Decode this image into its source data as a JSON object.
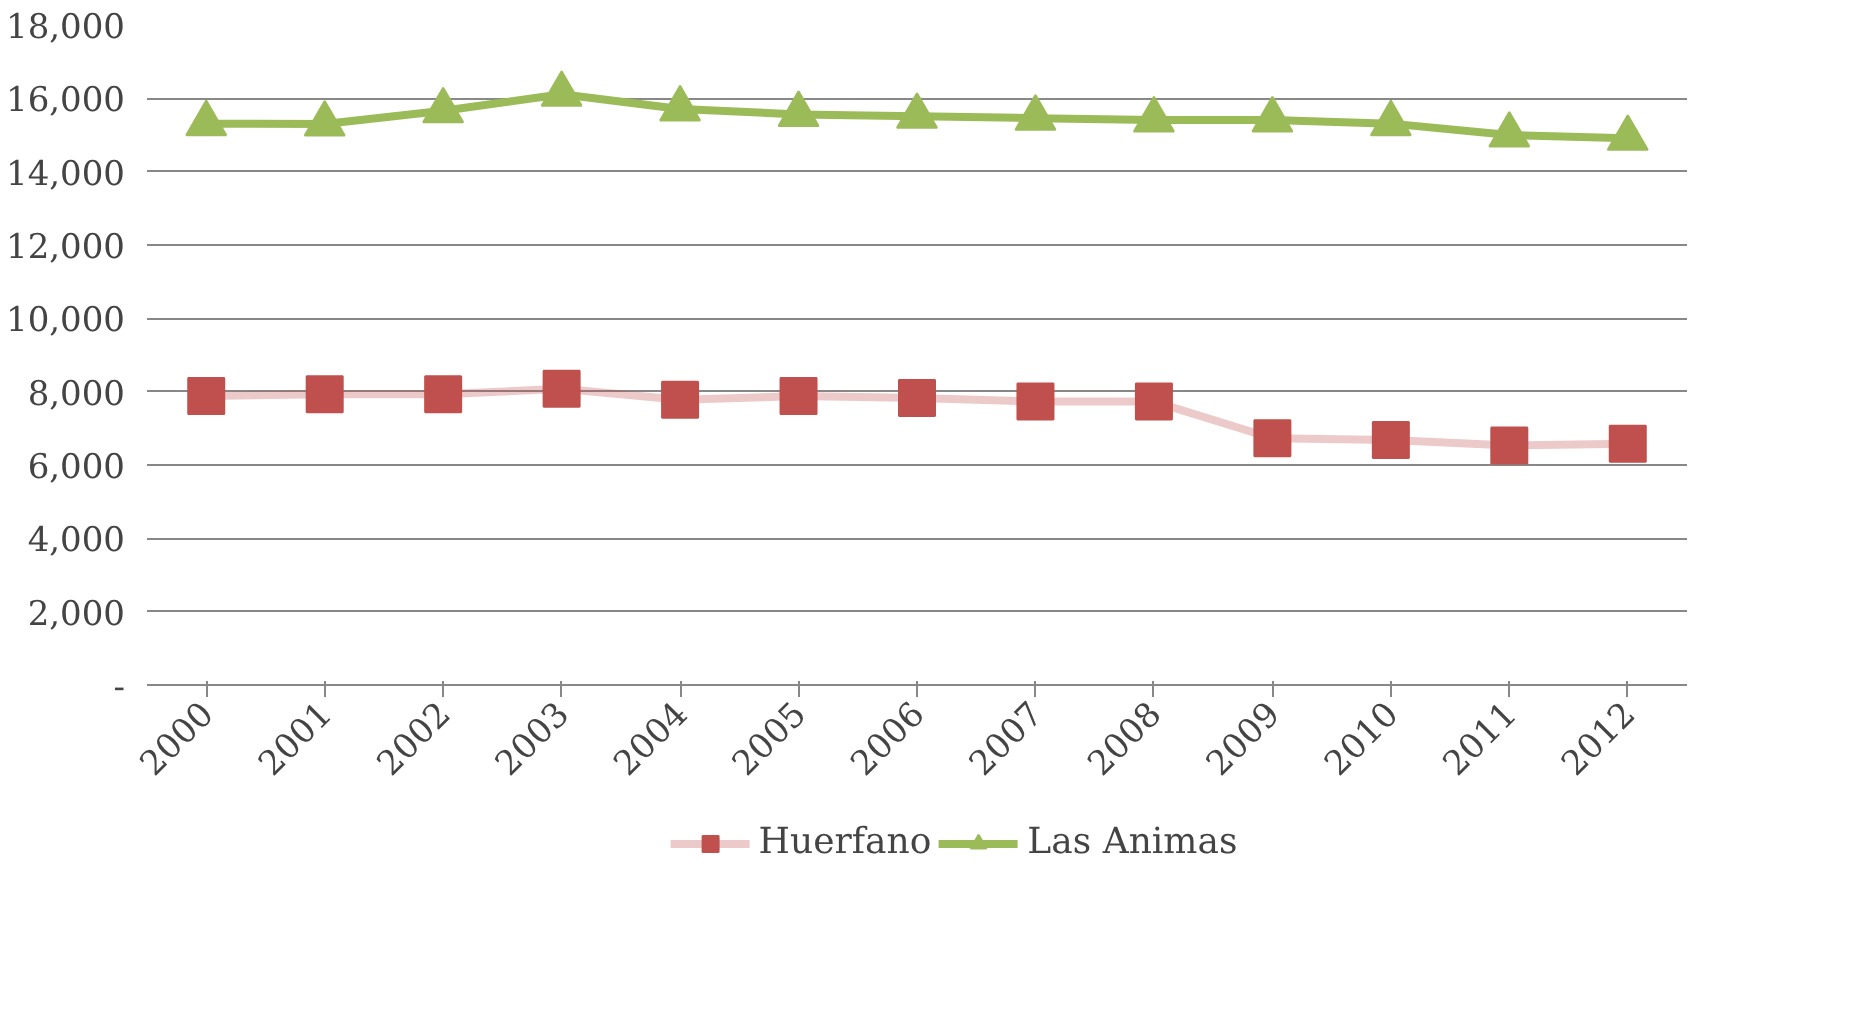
{
  "chart_data": {
    "type": "line",
    "categories": [
      "2000",
      "2001",
      "2002",
      "2003",
      "2004",
      "2005",
      "2006",
      "2007",
      "2008",
      "2009",
      "2010",
      "2011",
      "2012"
    ],
    "series": [
      {
        "name": "Huerfano",
        "color": "#c0504d",
        "marker": "square",
        "values": [
          7880,
          7930,
          7930,
          8080,
          7780,
          7880,
          7830,
          7730,
          7730,
          6730,
          6680,
          6530,
          6580
        ]
      },
      {
        "name": "Las Animas",
        "color": "#9bbb59",
        "marker": "triangle",
        "values": [
          15310,
          15300,
          15660,
          16110,
          15710,
          15560,
          15510,
          15460,
          15410,
          15410,
          15310,
          15000,
          14910
        ]
      }
    ],
    "ylim": [
      0,
      18000
    ],
    "yticks": [
      {
        "value": 0,
        "label": "-"
      },
      {
        "value": 2000,
        "label": "2,000"
      },
      {
        "value": 4000,
        "label": "4,000"
      },
      {
        "value": 6000,
        "label": "6,000"
      },
      {
        "value": 8000,
        "label": "8,000"
      },
      {
        "value": 10000,
        "label": "10,000"
      },
      {
        "value": 12000,
        "label": "12,000"
      },
      {
        "value": 14000,
        "label": "14,000"
      },
      {
        "value": 16000,
        "label": "16,000"
      },
      {
        "value": 18000,
        "label": "18,000"
      }
    ],
    "grid": "y",
    "legend": "bottom"
  }
}
